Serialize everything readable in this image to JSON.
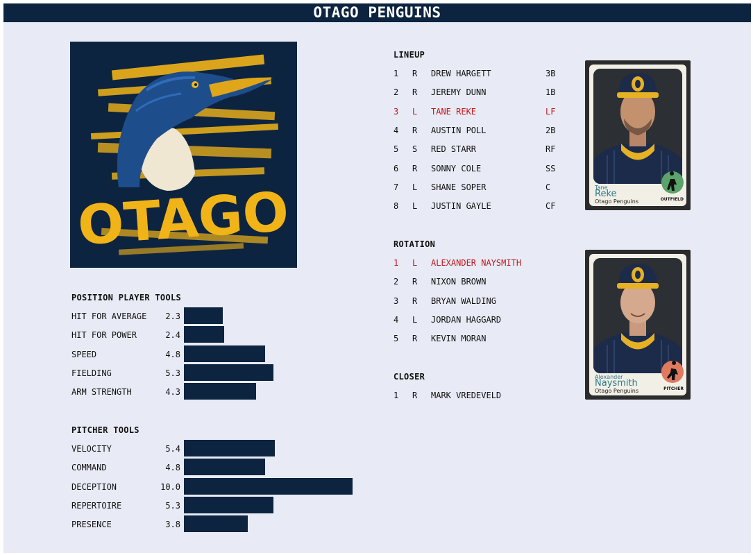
{
  "header": {
    "title": "OTAGO PENGUINS"
  },
  "logo": {
    "text": "OTAGO",
    "icon": "penguin-logo"
  },
  "position_tools": {
    "title": "POSITION PLAYER TOOLS",
    "items": [
      {
        "label": "HIT FOR AVERAGE",
        "value": "2.3"
      },
      {
        "label": "HIT FOR POWER",
        "value": "2.4"
      },
      {
        "label": "SPEED",
        "value": "4.8"
      },
      {
        "label": "FIELDING",
        "value": "5.3"
      },
      {
        "label": "ARM STRENGTH",
        "value": "4.3"
      }
    ]
  },
  "pitcher_tools": {
    "title": "PITCHER TOOLS",
    "items": [
      {
        "label": "VELOCITY",
        "value": "5.4"
      },
      {
        "label": "COMMAND",
        "value": "4.8"
      },
      {
        "label": "DECEPTION",
        "value": "10.0"
      },
      {
        "label": "REPERTOIRE",
        "value": "5.3"
      },
      {
        "label": "PRESENCE",
        "value": "3.8"
      }
    ]
  },
  "lineup": {
    "title": "LINEUP",
    "rows": [
      {
        "num": "1",
        "hand": "R",
        "name": "DREW HARGETT",
        "pos": "3B"
      },
      {
        "num": "2",
        "hand": "R",
        "name": "JEREMY DUNN",
        "pos": "1B"
      },
      {
        "num": "3",
        "hand": "L",
        "name": "TANE REKE",
        "pos": "LF"
      },
      {
        "num": "4",
        "hand": "R",
        "name": "AUSTIN POLL",
        "pos": "2B"
      },
      {
        "num": "5",
        "hand": "S",
        "name": "RED STARR",
        "pos": "RF"
      },
      {
        "num": "6",
        "hand": "R",
        "name": "SONNY COLE",
        "pos": "SS"
      },
      {
        "num": "7",
        "hand": "L",
        "name": "SHANE SOPER",
        "pos": "C"
      },
      {
        "num": "8",
        "hand": "L",
        "name": "JUSTIN GAYLE",
        "pos": "CF"
      }
    ]
  },
  "rotation": {
    "title": "ROTATION",
    "rows": [
      {
        "num": "1",
        "hand": "L",
        "name": "ALEXANDER NAYSMITH"
      },
      {
        "num": "2",
        "hand": "R",
        "name": "NIXON BROWN"
      },
      {
        "num": "3",
        "hand": "R",
        "name": "BRYAN WALDING"
      },
      {
        "num": "4",
        "hand": "L",
        "name": "JORDAN HAGGARD"
      },
      {
        "num": "5",
        "hand": "R",
        "name": "KEVIN MORAN"
      }
    ]
  },
  "closer": {
    "title": "CLOSER",
    "rows": [
      {
        "num": "1",
        "hand": "R",
        "name": "MARK VREDEVELD"
      }
    ]
  },
  "cards": {
    "outfield": {
      "first": "Tane",
      "last": "Reke",
      "team": "Otago Penguins",
      "badge": "OUTFIELD",
      "badge_color": "#5aa36a"
    },
    "pitcher": {
      "first": "Alexander",
      "last": "Naysmith",
      "team": "Otago Penguins",
      "badge": "PITCHER",
      "badge_color": "#e07a5f"
    }
  },
  "colors": {
    "navy": "#0d2440",
    "gold": "#f1b418",
    "highlight": "#c0171d",
    "background": "#e8ebf5"
  },
  "tool_scale_max": 10
}
